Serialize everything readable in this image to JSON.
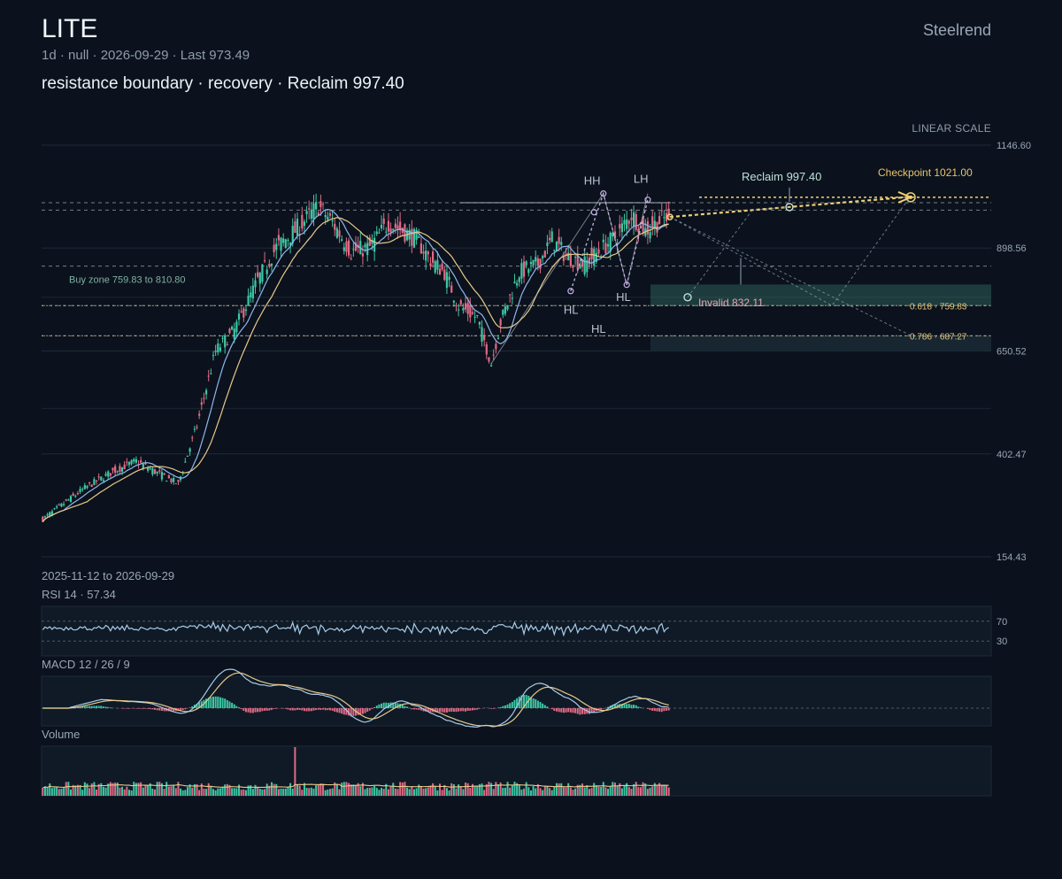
{
  "header": {
    "ticker": "LITE",
    "meta": "1d · null · 2026-09-29 · Last 973.49",
    "headline": "resistance boundary · recovery · Reclaim 997.40",
    "brand": "Steelrend",
    "scale_label": "LINEAR SCALE"
  },
  "footer": {
    "date_range": "2025-11-12 to 2026-09-29",
    "rsi_label": "RSI 14 · 57.34",
    "macd_label": "MACD 12 / 26 / 9",
    "volume_label": "Volume"
  },
  "colors": {
    "background": "#0b121d",
    "up": "#3ec7a4",
    "down": "#e06a84",
    "ma_fast": "#8fb6ee",
    "ma_slow": "#e8c98a",
    "projection": "#f0d074",
    "zone": "#3f8a7c"
  },
  "chart_data": {
    "type": "candlestick",
    "ylim": [
      154.43,
      1146.6
    ],
    "y_ticks": [
      "1146.60",
      "898.56",
      "650.52",
      "402.47",
      "154.43"
    ],
    "start_date": "2025-11-12",
    "end_date": "2026-09-29",
    "last": 973.49,
    "path_anchors": [
      [
        0,
        245
      ],
      [
        18,
        320
      ],
      [
        30,
        360
      ],
      [
        40,
        385
      ],
      [
        48,
        360
      ],
      [
        58,
        330
      ],
      [
        66,
        470
      ],
      [
        74,
        650
      ],
      [
        82,
        700
      ],
      [
        92,
        820
      ],
      [
        100,
        900
      ],
      [
        108,
        940
      ],
      [
        118,
        1000
      ],
      [
        124,
        960
      ],
      [
        132,
        890
      ],
      [
        140,
        900
      ],
      [
        148,
        960
      ],
      [
        154,
        940
      ],
      [
        160,
        920
      ],
      [
        166,
        870
      ],
      [
        172,
        840
      ],
      [
        178,
        760
      ],
      [
        186,
        730
      ],
      [
        192,
        620
      ],
      [
        196,
        720
      ],
      [
        204,
        840
      ],
      [
        212,
        860
      ],
      [
        218,
        920
      ],
      [
        224,
        880
      ],
      [
        232,
        860
      ],
      [
        240,
        900
      ],
      [
        246,
        930
      ],
      [
        252,
        980
      ],
      [
        258,
        940
      ],
      [
        263,
        960
      ],
      [
        268,
        975
      ]
    ],
    "levels": [
      {
        "label": "resistance",
        "value": 1000
      },
      {
        "label": "Reclaim 997.40",
        "value": 997.4
      },
      {
        "label": "Checkpoint 1021.00",
        "value": 1021.0
      },
      {
        "label": "Invalid 832.11",
        "value": 832.11
      },
      {
        "label": "0.618 · 759.83",
        "value": 759.83
      },
      {
        "label": "0.786 · 687.27",
        "value": 687.27
      }
    ],
    "buy_zone": {
      "label": "Buy zone 759.83 to 810.80",
      "low": 759.83,
      "high": 810.8
    },
    "lower_zone": {
      "low": 650.52,
      "high": 687.27
    },
    "swing_labels": [
      {
        "label": "HH",
        "bar": 240,
        "value": 1030
      },
      {
        "label": "LH",
        "bar": 259,
        "value": 1030
      },
      {
        "label": "HL",
        "bar": 226,
        "value": 770
      },
      {
        "label": "HL",
        "bar": 250,
        "value": 810
      }
    ],
    "projection_labels": {
      "reclaim": "Reclaim 997.40",
      "checkpoint": "Checkpoint 1021.00"
    },
    "rsi": {
      "period": 14,
      "value": 57.34,
      "levels": [
        "70",
        "30"
      ]
    },
    "macd": {
      "fast": 12,
      "slow": 26,
      "signal": 9
    },
    "volume": {
      "label": "Volume"
    }
  }
}
